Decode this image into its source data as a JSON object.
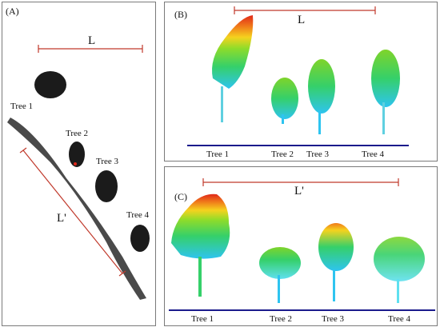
{
  "panels": {
    "a": {
      "label": "(A)",
      "length_label": "L",
      "oblique_label": "L'",
      "trees": [
        "Tree 1",
        "Tree 2",
        "Tree 3",
        "Tree 4"
      ]
    },
    "b": {
      "label": "(B)",
      "length_label": "L",
      "trees": [
        "Tree 1",
        "Tree 2",
        "Tree 3",
        "Tree 4"
      ]
    },
    "c": {
      "label": "(C)",
      "length_label": "L'",
      "trees": [
        "Tree 1",
        "Tree 2",
        "Tree 3",
        "Tree 4"
      ]
    }
  },
  "colors": {
    "measure_line": "#c0392b",
    "ground_line": "#1a1a8c",
    "cloud_gray": "#1a1a1a",
    "height_gradient": [
      "#2ec4f0",
      "#35d06a",
      "#8fdc2a",
      "#f5d21e",
      "#f07a1a",
      "#e0281a"
    ]
  }
}
